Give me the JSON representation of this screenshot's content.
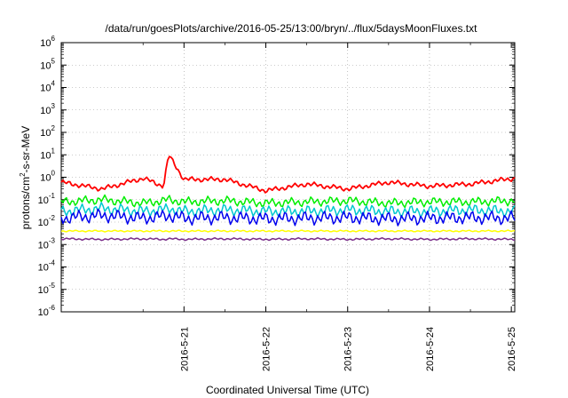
{
  "chart_data": {
    "type": "line",
    "title": "/data/run/goesPlots/archive/2016-05-25/13:00/bryn/../flux/5daysMoonFluxes.txt",
    "xlabel": "Coordinated Universal Time (UTC)",
    "ylabel": {
      "pre": "protons/cm",
      "sup": "2",
      "post": "-s-sr-MeV"
    },
    "y_scale": "log",
    "ylim": [
      1e-06,
      1000000.0
    ],
    "xlim": [
      "2016-05-20 00:00",
      "2016-05-25 13:00"
    ],
    "grid": true,
    "legend": "none",
    "x_ticks": [
      "2016-5-21",
      "2016-5-22",
      "2016-5-23",
      "2016-5-24",
      "2016-5-25"
    ],
    "y_ticks": [
      {
        "base": "10",
        "exp": "-6"
      },
      {
        "base": "10",
        "exp": "-5"
      },
      {
        "base": "10",
        "exp": "-4"
      },
      {
        "base": "10",
        "exp": "-3"
      },
      {
        "base": "10",
        "exp": "-2"
      },
      {
        "base": "10",
        "exp": "-1"
      },
      {
        "base": "10",
        "exp": "0"
      },
      {
        "base": "10",
        "exp": "1"
      },
      {
        "base": "10",
        "exp": "2"
      },
      {
        "base": "10",
        "exp": "3"
      },
      {
        "base": "10",
        "exp": "4"
      },
      {
        "base": "10",
        "exp": "5"
      },
      {
        "base": "10",
        "exp": "6"
      }
    ],
    "x": [
      "2016-05-20 00:00",
      "2016-05-20 12:00",
      "2016-05-21 00:00",
      "2016-05-21 06:00",
      "2016-05-21 07:30",
      "2016-05-21 12:00",
      "2016-05-22 00:00",
      "2016-05-22 12:00",
      "2016-05-23 00:00",
      "2016-05-23 12:00",
      "2016-05-24 00:00",
      "2016-05-24 12:00",
      "2016-05-25 00:00",
      "2016-05-25 13:00"
    ],
    "series": [
      {
        "color": "#ff0000",
        "values": [
          0.6,
          0.3,
          0.9,
          0.4,
          10,
          0.8,
          0.8,
          0.25,
          0.5,
          0.3,
          0.6,
          0.4,
          0.5,
          0.9
        ]
      },
      {
        "color": "#00ee00",
        "values": [
          0.08,
          0.1,
          0.07,
          0.09,
          0.1,
          0.08,
          0.09,
          0.07,
          0.08,
          0.09,
          0.07,
          0.08,
          0.08,
          0.09
        ]
      },
      {
        "color": "#00c8d0",
        "values": [
          0.03,
          0.04,
          0.03,
          0.035,
          0.04,
          0.03,
          0.035,
          0.03,
          0.03,
          0.035,
          0.03,
          0.03,
          0.035,
          0.03
        ]
      },
      {
        "color": "#0000ee",
        "values": [
          0.015,
          0.02,
          0.015,
          0.018,
          0.02,
          0.015,
          0.016,
          0.014,
          0.015,
          0.016,
          0.014,
          0.015,
          0.016,
          0.015
        ]
      },
      {
        "color": "#ffff00",
        "values": [
          0.004,
          0.004,
          0.004,
          0.004,
          0.004,
          0.004,
          0.004,
          0.004,
          0.004,
          0.004,
          0.004,
          0.004,
          0.004,
          0.004
        ]
      },
      {
        "color": "#7a2e8a",
        "values": [
          0.0018,
          0.0017,
          0.0018,
          0.0017,
          0.0018,
          0.0017,
          0.0018,
          0.0017,
          0.0018,
          0.0017,
          0.0018,
          0.0017,
          0.0018,
          0.0017
        ]
      }
    ]
  }
}
